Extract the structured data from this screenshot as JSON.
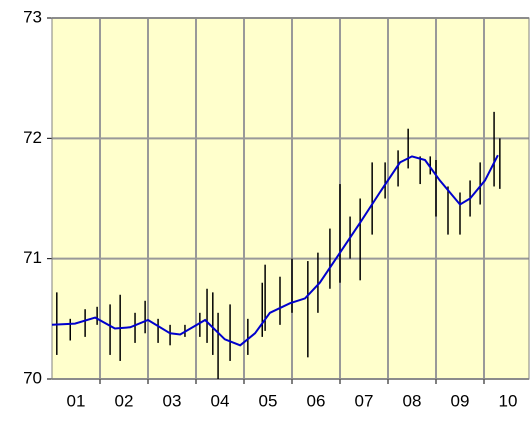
{
  "chart_data": {
    "type": "highlow",
    "plot_color": "#ffffcc",
    "grid": true,
    "xlim": [
      0,
      10
    ],
    "xticks": [
      {
        "value": 0.5,
        "label": "01"
      },
      {
        "value": 1.5,
        "label": "02"
      },
      {
        "value": 2.5,
        "label": "03"
      },
      {
        "value": 3.5,
        "label": "04"
      },
      {
        "value": 4.5,
        "label": "05"
      },
      {
        "value": 5.5,
        "label": "06"
      },
      {
        "value": 6.5,
        "label": "07"
      },
      {
        "value": 7.5,
        "label": "08"
      },
      {
        "value": 8.5,
        "label": "09"
      },
      {
        "value": 9.5,
        "label": "10"
      }
    ],
    "ylim": [
      70,
      73
    ],
    "yticks": [
      70,
      71,
      72,
      73
    ],
    "ranges": {
      "color": "#000000",
      "x": [
        0.1,
        0.38,
        0.69,
        0.94,
        1.21,
        1.42,
        1.73,
        1.94,
        2.21,
        2.46,
        2.77,
        3.08,
        3.23,
        3.35,
        3.46,
        3.71,
        4.08,
        4.38,
        4.44,
        4.75,
        5.0,
        5.33,
        5.54,
        5.79,
        6.0,
        6.21,
        6.42,
        6.67,
        6.94,
        7.21,
        7.42,
        7.67,
        7.88,
        8.0,
        8.25,
        8.5,
        8.71,
        8.92,
        9.21,
        9.33
      ],
      "high": [
        70.72,
        70.5,
        70.58,
        70.6,
        70.62,
        70.7,
        70.55,
        70.65,
        70.5,
        70.45,
        70.45,
        70.55,
        70.75,
        70.72,
        70.55,
        70.62,
        70.5,
        70.8,
        70.95,
        70.85,
        71.0,
        70.98,
        71.05,
        71.25,
        71.62,
        71.35,
        71.5,
        71.8,
        71.8,
        71.9,
        72.08,
        71.85,
        71.85,
        71.82,
        71.6,
        71.55,
        71.65,
        71.8,
        72.22,
        72.0
      ],
      "low": [
        70.2,
        70.32,
        70.35,
        70.45,
        70.2,
        70.15,
        70.3,
        70.38,
        70.3,
        70.28,
        70.35,
        70.35,
        70.3,
        70.2,
        70.0,
        70.15,
        70.2,
        70.35,
        70.4,
        70.45,
        70.55,
        70.18,
        70.55,
        70.75,
        70.8,
        71.0,
        70.82,
        71.2,
        71.5,
        71.6,
        71.75,
        71.62,
        71.7,
        71.35,
        71.2,
        71.2,
        71.35,
        71.45,
        71.6,
        71.58
      ]
    },
    "trend": {
      "color": "#0000cc",
      "x": [
        0,
        0.48,
        0.9,
        1.31,
        1.63,
        2.0,
        2.46,
        2.67,
        3.19,
        3.6,
        3.92,
        4.23,
        4.54,
        4.96,
        5.27,
        5.58,
        6.0,
        6.42,
        6.83,
        7.25,
        7.5,
        7.77,
        8.08,
        8.5,
        8.71,
        9.02,
        9.29
      ],
      "values": [
        70.45,
        70.46,
        70.51,
        70.42,
        70.43,
        70.49,
        70.38,
        70.37,
        70.49,
        70.33,
        70.28,
        70.38,
        70.55,
        70.63,
        70.67,
        70.8,
        71.05,
        71.3,
        71.55,
        71.8,
        71.85,
        71.82,
        71.65,
        71.45,
        71.5,
        71.65,
        71.86
      ]
    }
  }
}
